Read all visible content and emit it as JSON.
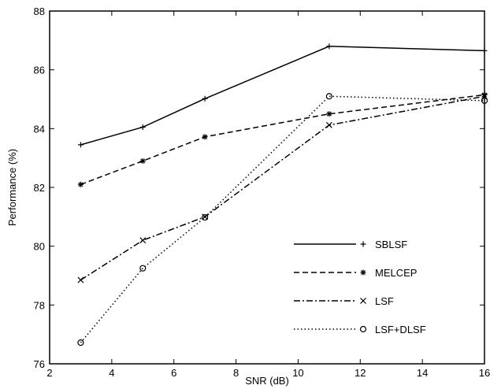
{
  "chart_data": {
    "type": "line",
    "xlabel": "SNR (dB)",
    "ylabel": "Performance (%)",
    "xlim": [
      2,
      16
    ],
    "ylim": [
      76,
      88
    ],
    "xticks": [
      2,
      4,
      6,
      8,
      10,
      12,
      14,
      16
    ],
    "yticks": [
      76,
      78,
      80,
      82,
      84,
      86,
      88
    ],
    "grid": false,
    "legend_position": "bottom-right",
    "series": [
      {
        "name": "SBLSF",
        "marker": "+",
        "line_style": "solid",
        "points": [
          [
            3,
            83.45
          ],
          [
            5,
            84.05
          ],
          [
            7,
            85.02
          ],
          [
            11,
            86.8
          ],
          [
            16,
            86.65
          ]
        ]
      },
      {
        "name": "MELCEP",
        "marker": "*",
        "line_style": "dashed",
        "points": [
          [
            3,
            82.1
          ],
          [
            5,
            82.9
          ],
          [
            7,
            83.72
          ],
          [
            11,
            84.5
          ],
          [
            16,
            85.15
          ]
        ]
      },
      {
        "name": "LSF",
        "marker": "x",
        "line_style": "dashdot",
        "points": [
          [
            3,
            78.85
          ],
          [
            5,
            80.2
          ],
          [
            7,
            81.0
          ],
          [
            11,
            84.12
          ],
          [
            16,
            85.1
          ]
        ]
      },
      {
        "name": "LSF+DLSF",
        "marker": "o",
        "line_style": "dotted",
        "points": [
          [
            3,
            76.72
          ],
          [
            5,
            79.25
          ],
          [
            7,
            80.98
          ],
          [
            11,
            85.1
          ],
          [
            16,
            84.95
          ]
        ]
      }
    ]
  }
}
